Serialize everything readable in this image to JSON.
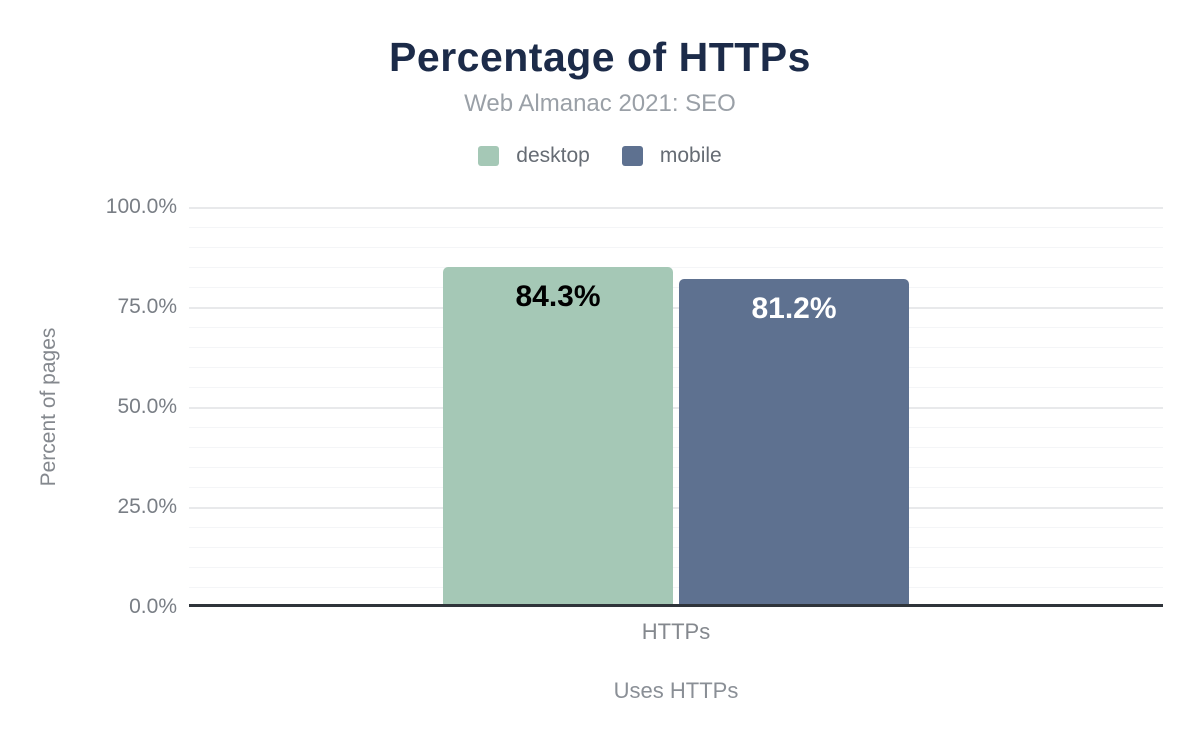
{
  "chart": {
    "title": "Percentage of HTTPs",
    "subtitle": "Web Almanac 2021: SEO"
  },
  "chart_data": {
    "type": "bar",
    "title": "Percentage of HTTPs",
    "subtitle": "Web Almanac 2021: SEO",
    "categories": [
      "HTTPs"
    ],
    "series": [
      {
        "name": "desktop",
        "values": [
          84.3
        ],
        "display_labels": [
          "84.3%"
        ],
        "color": "#a5c8b6",
        "label_color": "#000000"
      },
      {
        "name": "mobile",
        "values": [
          81.2
        ],
        "display_labels": [
          "81.2%"
        ],
        "color": "#5e7190",
        "label_color": "#ffffff"
      }
    ],
    "xlabel": "Uses HTTPs",
    "ylabel": "Percent of pages",
    "ylim": [
      0,
      100
    ],
    "yticks": [
      {
        "label": "100.0%",
        "value": 100
      },
      {
        "label": "75.0%",
        "value": 75
      },
      {
        "label": "50.0%",
        "value": 50
      },
      {
        "label": "25.0%",
        "value": 25
      },
      {
        "label": "0.0%",
        "value": 0
      }
    ],
    "grid": {
      "major_step_pct": 25,
      "minor_step_pct": 5,
      "orientation": "horizontal"
    },
    "legend_position": "top",
    "colors": {
      "title": "#1c2b49",
      "subtitle": "#9aa0a7",
      "axis_line": "#2f343a",
      "major_grid": "#e8e9eb",
      "minor_grid": "#f4f5f7",
      "tick_text": "#797e85"
    }
  }
}
